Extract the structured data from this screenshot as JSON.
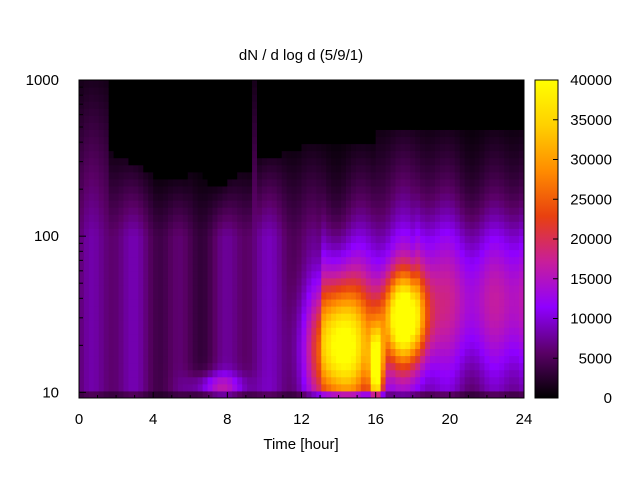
{
  "chart_data": {
    "type": "heatmap",
    "title": "dN / d log d (5/9/1)",
    "xlabel": "Time [hour]",
    "ylabel": "",
    "xlim": [
      0,
      24
    ],
    "ylim": [
      9.2,
      1000
    ],
    "y_scale": "log",
    "x_ticks": [
      "0",
      "4",
      "8",
      "12",
      "16",
      "20",
      "24"
    ],
    "y_ticks": [
      "10",
      "100",
      "1000"
    ],
    "colorbar": {
      "min": 0,
      "max": 40000,
      "ticks": [
        "0",
        "5000",
        "10000",
        "15000",
        "20000",
        "25000",
        "30000",
        "35000",
        "40000"
      ],
      "palette": [
        "#000000",
        "#5a0066",
        "#8f00ff",
        "#c81e9a",
        "#e8400f",
        "#ff8c00",
        "#ffd000",
        "#ffff00"
      ]
    },
    "features": [
      {
        "x": [
          13,
          15.3
        ],
        "y": [
          10,
          35
        ],
        "peak": 33000
      },
      {
        "x": [
          15.8,
          16.3
        ],
        "y": [
          10,
          20
        ],
        "peak": 30000
      },
      {
        "x": [
          16.8,
          18.3
        ],
        "y": [
          20,
          45
        ],
        "peak": 33000
      },
      {
        "x": [
          6.5,
          8.5
        ],
        "y": [
          10,
          12
        ],
        "peak": 9000
      }
    ]
  }
}
